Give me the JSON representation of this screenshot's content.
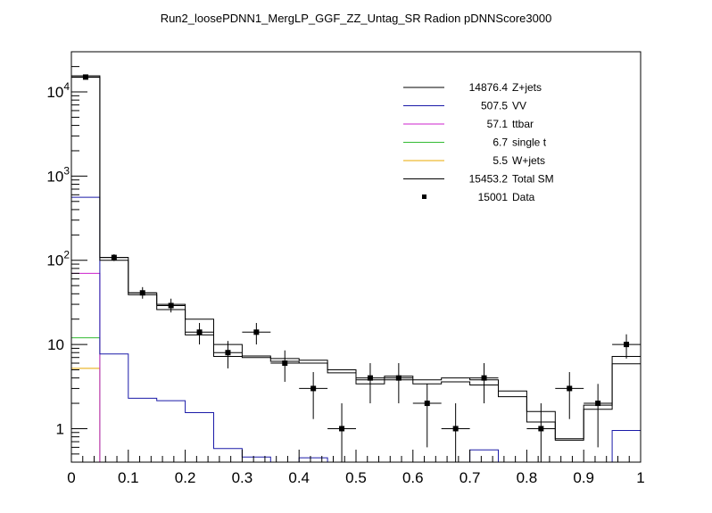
{
  "chart_data": {
    "type": "histogram",
    "title": "Run2_loosePDNN1_MergLP_GGF_ZZ_Untag_SR Radion  pDNNScore3000",
    "xlabel": "",
    "ylabel": "",
    "xlim": [
      0,
      1
    ],
    "ylim": [
      0.4,
      30000
    ],
    "yscale": "log",
    "grid": false,
    "x_ticks": [
      "0",
      "0.1",
      "0.2",
      "0.3",
      "0.4",
      "0.5",
      "0.6",
      "0.7",
      "0.8",
      "0.9",
      "1"
    ],
    "y_ticks": [
      {
        "value": 1,
        "base": "1",
        "exp": ""
      },
      {
        "value": 10,
        "base": "10",
        "exp": ""
      },
      {
        "value": 100,
        "base": "10",
        "exp": "2"
      },
      {
        "value": 1000,
        "base": "10",
        "exp": "3"
      },
      {
        "value": 10000,
        "base": "10",
        "exp": "4"
      }
    ],
    "bin_edges": [
      0,
      0.05,
      0.1,
      0.15,
      0.2,
      0.25,
      0.3,
      0.35,
      0.4,
      0.45,
      0.5,
      0.55,
      0.6,
      0.65,
      0.7,
      0.75,
      0.8,
      0.85,
      0.9,
      0.95,
      1.0
    ],
    "legend_position": "top-right",
    "series": [
      {
        "name": "Z+jets",
        "yield": "14876.4",
        "color": "#000000",
        "values": [
          14900,
          100,
          39,
          26,
          13,
          7.2,
          7.0,
          6.3,
          6.0,
          4.6,
          3.4,
          3.8,
          3.4,
          3.6,
          3.3,
          2.4,
          1.2,
          0.73,
          1.7,
          5.9
        ]
      },
      {
        "name": "VV",
        "yield": "507.5",
        "color": "#1a1aa8",
        "values": [
          560,
          7.7,
          2.3,
          2.15,
          1.55,
          0.58,
          0.46,
          0.38,
          0.45,
          0.38,
          0.4,
          0.4,
          0.4,
          0.4,
          0.56,
          0.4,
          0.4,
          0.4,
          0.4,
          0.95
        ]
      },
      {
        "name": "ttbar",
        "yield": "57.1",
        "color": "#cc22cc",
        "values": [
          70,
          0.3,
          0.3,
          0.3,
          0.3,
          0.3,
          0.3,
          0.3,
          0.3,
          0.3,
          0.3,
          0.3,
          0.3,
          0.3,
          0.3,
          0.3,
          0.3,
          0.3,
          0.3,
          0.3
        ]
      },
      {
        "name": "single t",
        "yield": "6.7",
        "color": "#33bb33",
        "values": [
          12,
          0.3,
          0.3,
          0.3,
          0.3,
          0.3,
          0.3,
          0.3,
          0.3,
          0.3,
          0.3,
          0.3,
          0.3,
          0.3,
          0.3,
          0.3,
          0.3,
          0.3,
          0.3,
          0.3
        ]
      },
      {
        "name": "W+jets",
        "yield": "5.5",
        "color": "#e8a800",
        "values": [
          5.2,
          0.3,
          0.3,
          0.3,
          0.3,
          0.3,
          0.3,
          0.3,
          0.3,
          0.3,
          0.3,
          0.3,
          0.3,
          0.3,
          0.3,
          0.3,
          0.3,
          0.3,
          0.3,
          0.3
        ]
      },
      {
        "name": "Total SM",
        "yield": "15453.2",
        "color": "#000000",
        "values": [
          15500,
          108,
          41,
          30,
          20,
          10,
          7.3,
          6.8,
          6.5,
          5.0,
          3.8,
          4.2,
          3.8,
          4.0,
          3.8,
          2.8,
          1.6,
          0.76,
          1.9,
          7.2
        ]
      }
    ],
    "data": {
      "name": "Data",
      "yield": "15001",
      "points": [
        {
          "x": 0.025,
          "y": 15001,
          "lo": null,
          "hi": null
        },
        {
          "x": 0.075,
          "y": 108,
          "lo": 98,
          "hi": 118
        },
        {
          "x": 0.125,
          "y": 41,
          "lo": 35,
          "hi": 48
        },
        {
          "x": 0.175,
          "y": 29,
          "lo": 24,
          "hi": 35
        },
        {
          "x": 0.225,
          "y": 14,
          "lo": 10,
          "hi": 18
        },
        {
          "x": 0.275,
          "y": 8,
          "lo": 5.2,
          "hi": 11
        },
        {
          "x": 0.325,
          "y": 14,
          "lo": 10,
          "hi": 18
        },
        {
          "x": 0.375,
          "y": 6,
          "lo": 3.6,
          "hi": 8.5
        },
        {
          "x": 0.425,
          "y": 3,
          "lo": 1.3,
          "hi": 4.7
        },
        {
          "x": 0.475,
          "y": 1,
          "lo": 0.4,
          "hi": 2
        },
        {
          "x": 0.525,
          "y": 4,
          "lo": 2,
          "hi": 6
        },
        {
          "x": 0.575,
          "y": 4,
          "lo": 2,
          "hi": 6
        },
        {
          "x": 0.625,
          "y": 2,
          "lo": 0.6,
          "hi": 3.4
        },
        {
          "x": 0.675,
          "y": 1,
          "lo": 0.4,
          "hi": 2
        },
        {
          "x": 0.725,
          "y": 4,
          "lo": 2,
          "hi": 6
        },
        {
          "x": 0.825,
          "y": 1,
          "lo": 0.4,
          "hi": 2
        },
        {
          "x": 0.875,
          "y": 3,
          "lo": 1.3,
          "hi": 4.7
        },
        {
          "x": 0.925,
          "y": 2,
          "lo": 0.6,
          "hi": 3.4
        },
        {
          "x": 0.975,
          "y": 10,
          "lo": 6.8,
          "hi": 13.2
        }
      ]
    }
  }
}
